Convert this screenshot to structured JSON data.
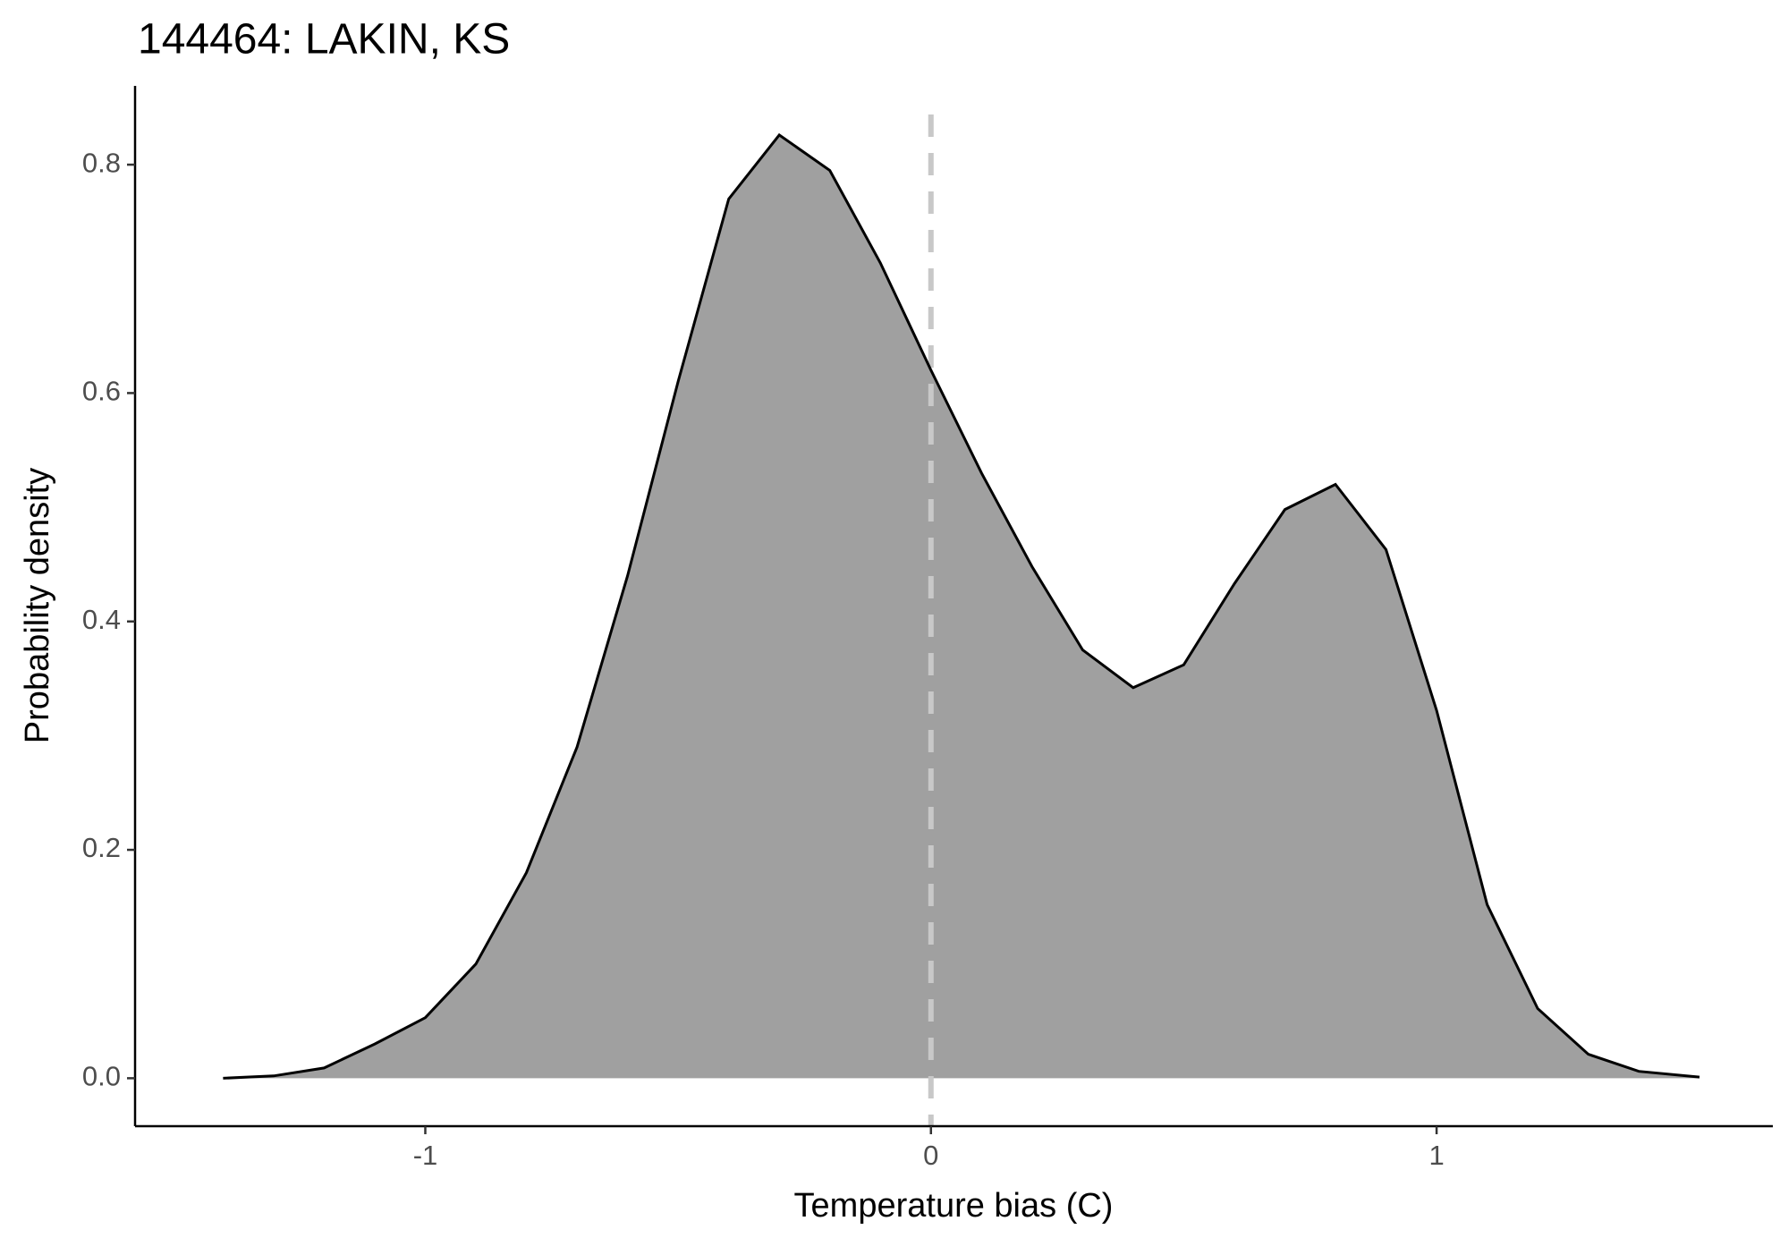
{
  "chart_data": {
    "type": "density",
    "title": "144464: LAKIN, KS",
    "xlabel": "Temperature bias (C)",
    "ylabel": "Probability density",
    "x": [
      -1.4,
      -1.3,
      -1.2,
      -1.1,
      -1.0,
      -0.9,
      -0.8,
      -0.7,
      -0.6,
      -0.5,
      -0.4,
      -0.3,
      -0.2,
      -0.1,
      0.0,
      0.1,
      0.2,
      0.3,
      0.4,
      0.5,
      0.6,
      0.7,
      0.8,
      0.9,
      1.0,
      1.1,
      1.2,
      1.3,
      1.4,
      1.52
    ],
    "values": [
      0.0,
      0.002,
      0.009,
      0.03,
      0.053,
      0.1,
      0.18,
      0.29,
      0.44,
      0.61,
      0.77,
      0.826,
      0.795,
      0.714,
      0.62,
      0.53,
      0.448,
      0.375,
      0.342,
      0.362,
      0.433,
      0.498,
      0.52,
      0.463,
      0.322,
      0.152,
      0.061,
      0.021,
      0.006,
      0.001
    ],
    "fill": "#a0a0a0",
    "line_color": "#000000",
    "vline": 0,
    "vline_color": "#c8c8c8",
    "xlim": [
      -1.574,
      1.665
    ],
    "xticks": [
      -1,
      0,
      1
    ],
    "ylim": [
      -0.042,
      0.869
    ],
    "yticks": [
      {
        "value": 0,
        "label": "0.0"
      },
      0.2,
      0.4,
      0.6,
      0.8
    ],
    "grid": false
  }
}
